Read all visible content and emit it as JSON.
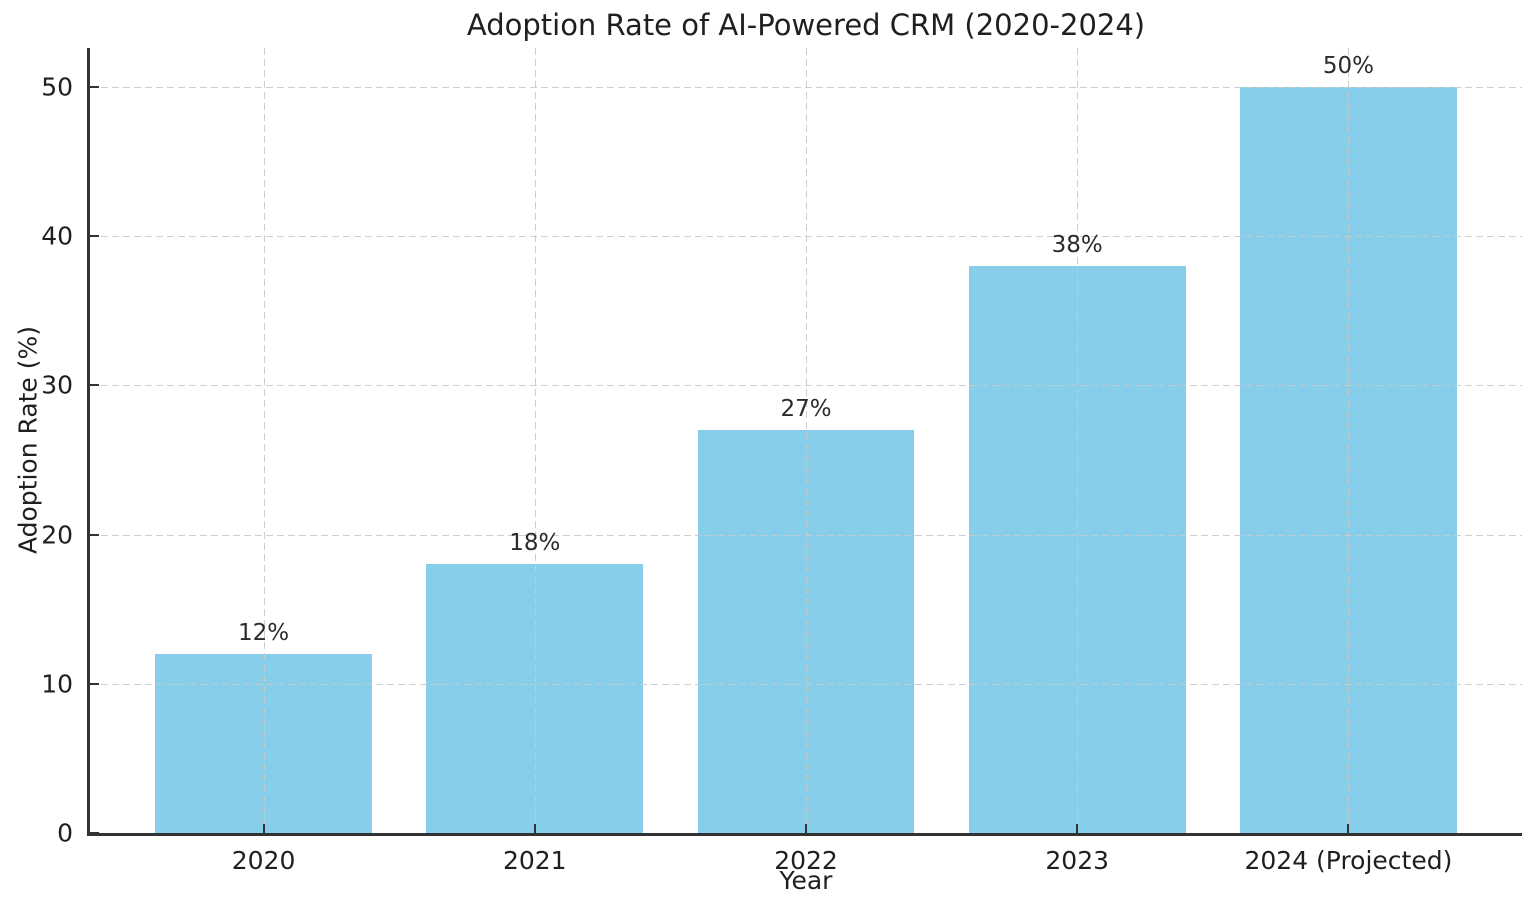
{
  "chart_data": {
    "type": "bar",
    "title": "Adoption Rate of AI-Powered CRM (2020-2024)",
    "xlabel": "Year",
    "ylabel": "Adoption Rate (%)",
    "categories": [
      "2020",
      "2021",
      "2022",
      "2023",
      "2024 (Projected)"
    ],
    "values": [
      12,
      18,
      27,
      38,
      50
    ],
    "bar_labels": [
      "12%",
      "18%",
      "27%",
      "38%",
      "50%"
    ],
    "yticks": [
      0,
      10,
      20,
      30,
      40,
      50
    ],
    "ylim": [
      0,
      52.6
    ],
    "grid": {
      "horizontal": true,
      "vertical": true,
      "style": "dashed",
      "drawn_above_bars": true
    },
    "legend_position": "none",
    "colors": {
      "bar_fill": "#87CEEB",
      "grid_line": "#c9c9c9",
      "axis_line": "#333333",
      "text": "#1f1f1f",
      "background": "#ffffff"
    }
  }
}
